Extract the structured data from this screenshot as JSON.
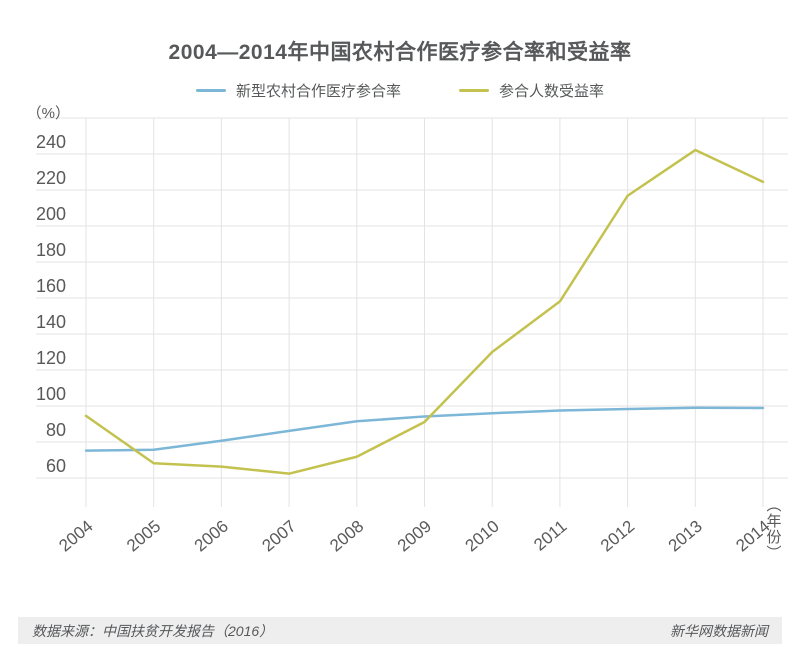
{
  "title": "2004—2014年中国农村合作医疗参合率和受益率",
  "y_axis": {
    "unit": "（%）"
  },
  "x_axis": {
    "unit": "（年份）"
  },
  "footer": {
    "source": "数据来源：中国扶贫开发报告（2016）",
    "credit": "新华网数据新闻"
  },
  "colors": {
    "participation_line": "#7cb7d7",
    "benefit_line": "#c3c24f",
    "grid": "#e3e3e3",
    "text": "#59595b",
    "footer_bg": "#eeeeee"
  },
  "chart_data": {
    "type": "line",
    "title": "2004—2014年中国农村合作医疗参合率和受益率",
    "categories": [
      "2004",
      "2005",
      "2006",
      "2007",
      "2008",
      "2009",
      "2010",
      "2011",
      "2012",
      "2013",
      "2014"
    ],
    "series": [
      {
        "name": "新型农村合作医疗参合率",
        "color": "#7cb7d7",
        "values": [
          75.2,
          75.7,
          80.7,
          86.2,
          91.5,
          94.2,
          96.0,
          97.5,
          98.3,
          99.0,
          98.9
        ]
      },
      {
        "name": "参合人数受益率",
        "color": "#c3c24f",
        "values": [
          94.5,
          68.2,
          66.3,
          62.4,
          71.8,
          91.1,
          130.0,
          158.1,
          216.8,
          242.2,
          224.5
        ]
      }
    ],
    "ylabel": "（%）",
    "xlabel": "（年份）",
    "yticks": [
      60,
      80,
      100,
      120,
      140,
      160,
      180,
      200,
      220,
      240
    ],
    "ylim": [
      45,
      260
    ],
    "grid": true,
    "legend_position": "top",
    "markers": false
  }
}
